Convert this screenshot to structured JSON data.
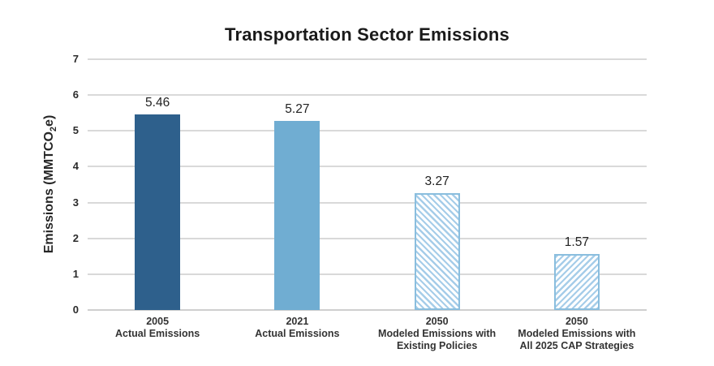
{
  "chart_data": {
    "type": "bar",
    "title": "Transportation Sector Emissions",
    "xlabel": "",
    "ylabel": "Emissions (MMTCO2e)",
    "ylabel_prefix": "Emissions (MMTCO",
    "ylabel_sub": "2",
    "ylabel_suffix": "e)",
    "ylim": [
      0,
      7
    ],
    "yticks": [
      0,
      1,
      2,
      3,
      4,
      5,
      6,
      7
    ],
    "grid": true,
    "legend": false,
    "categories": [
      "2005 Actual Emissions",
      "2021 Actual Emissions",
      "2050 Modeled Emissions with Existing Policies",
      "2050 Modeled Emissions with All 2025 CAP Strategies"
    ],
    "values": [
      5.46,
      5.27,
      3.27,
      1.57
    ],
    "bars": [
      {
        "value": 5.46,
        "label": "5.46",
        "category_lines": [
          "2005",
          "Actual Emissions"
        ],
        "fill": "solid",
        "color": "#2e608c"
      },
      {
        "value": 5.27,
        "label": "5.27",
        "category_lines": [
          "2021",
          "Actual Emissions"
        ],
        "fill": "solid",
        "color": "#70add2"
      },
      {
        "value": 3.27,
        "label": "3.27",
        "category_lines": [
          "2050",
          "Modeled Emissions with",
          "Existing Policies"
        ],
        "fill": "hatch",
        "hatch_direction": "backslash",
        "color": "#a6cde9",
        "border_color": "#8abede"
      },
      {
        "value": 1.57,
        "label": "1.57",
        "category_lines": [
          "2050",
          "Modeled Emissions with",
          "All 2025 CAP Strategies"
        ],
        "fill": "hatch",
        "hatch_direction": "slash",
        "color": "#a6cde9",
        "border_color": "#8abede"
      }
    ],
    "colors": {
      "solid_dark_blue": "#2e608c",
      "solid_light_blue": "#70add2",
      "hatch_stripe": "#a6cde9",
      "hatch_border": "#8abede",
      "gridline": "#d9d9d9",
      "text": "#262626"
    }
  }
}
